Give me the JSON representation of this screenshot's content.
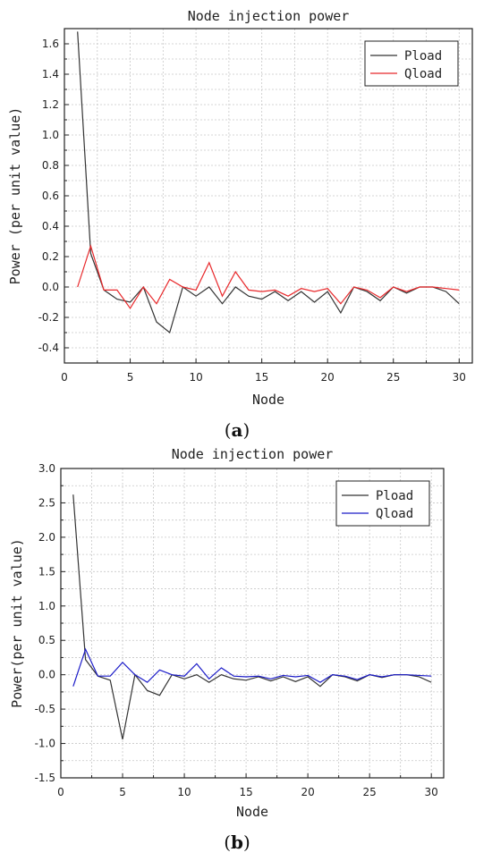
{
  "chart_data": [
    {
      "type": "line",
      "panel": "(a)",
      "title": "Node injection power",
      "xlabel": "Node",
      "ylabel": "Power (per unit value)",
      "xlim": [
        0,
        31
      ],
      "ylim": [
        -0.5,
        1.7
      ],
      "xticks": [
        0,
        5,
        10,
        15,
        20,
        25,
        30
      ],
      "yticks": [
        -0.4,
        -0.2,
        0.0,
        0.2,
        0.4,
        0.6,
        0.8,
        1.0,
        1.2,
        1.4,
        1.6
      ],
      "ytick_decimals": 1,
      "grid": true,
      "legend_position": "top-right",
      "x": [
        1,
        2,
        3,
        4,
        5,
        6,
        7,
        8,
        9,
        10,
        11,
        12,
        13,
        14,
        15,
        16,
        17,
        18,
        19,
        20,
        21,
        22,
        23,
        24,
        25,
        26,
        27,
        28,
        29,
        30
      ],
      "series": [
        {
          "name": "Pload",
          "color": "#333333",
          "values": [
            1.68,
            0.22,
            -0.02,
            -0.08,
            -0.1,
            0.0,
            -0.23,
            -0.3,
            0.0,
            -0.06,
            0.0,
            -0.11,
            0.0,
            -0.06,
            -0.08,
            -0.03,
            -0.09,
            -0.03,
            -0.1,
            -0.03,
            -0.17,
            0.0,
            -0.03,
            -0.09,
            0.0,
            -0.04,
            0.0,
            0.0,
            -0.03,
            -0.11
          ]
        },
        {
          "name": "Qload",
          "color": "#e8282b",
          "values": [
            0.0,
            0.27,
            -0.02,
            -0.02,
            -0.14,
            0.0,
            -0.11,
            0.05,
            0.0,
            -0.02,
            0.16,
            -0.06,
            0.1,
            -0.02,
            -0.03,
            -0.02,
            -0.06,
            -0.01,
            -0.03,
            -0.01,
            -0.11,
            0.0,
            -0.02,
            -0.07,
            0.0,
            -0.03,
            0.0,
            0.0,
            -0.01,
            -0.02
          ]
        }
      ]
    },
    {
      "type": "line",
      "panel": "(b)",
      "title": "Node injection power",
      "xlabel": "Node",
      "ylabel": "Power(per unit value)",
      "xlim": [
        0,
        31
      ],
      "ylim": [
        -1.5,
        3.0
      ],
      "xticks": [
        0,
        5,
        10,
        15,
        20,
        25,
        30
      ],
      "yticks": [
        -1.5,
        -1.0,
        -0.5,
        0.0,
        0.5,
        1.0,
        1.5,
        2.0,
        2.5,
        3.0
      ],
      "ytick_decimals": 1,
      "grid": true,
      "legend_position": "top-right",
      "x": [
        1,
        2,
        3,
        4,
        5,
        6,
        7,
        8,
        9,
        10,
        11,
        12,
        13,
        14,
        15,
        16,
        17,
        18,
        19,
        20,
        21,
        22,
        23,
        24,
        25,
        26,
        27,
        28,
        29,
        30
      ],
      "series": [
        {
          "name": "Pload",
          "color": "#333333",
          "values": [
            2.62,
            0.22,
            -0.02,
            -0.08,
            -0.94,
            0.0,
            -0.23,
            -0.3,
            0.0,
            -0.06,
            0.0,
            -0.11,
            0.0,
            -0.06,
            -0.08,
            -0.03,
            -0.09,
            -0.03,
            -0.1,
            -0.03,
            -0.17,
            0.0,
            -0.03,
            -0.09,
            0.0,
            -0.04,
            0.0,
            0.0,
            -0.03,
            -0.11
          ]
        },
        {
          "name": "Qload",
          "color": "#1a1ac8",
          "values": [
            -0.17,
            0.37,
            -0.02,
            -0.02,
            0.18,
            0.0,
            -0.11,
            0.07,
            0.0,
            -0.02,
            0.16,
            -0.06,
            0.1,
            -0.02,
            -0.03,
            -0.02,
            -0.06,
            -0.01,
            -0.03,
            -0.01,
            -0.11,
            0.0,
            -0.02,
            -0.07,
            0.0,
            -0.03,
            0.0,
            0.0,
            -0.01,
            -0.02
          ]
        }
      ]
    }
  ]
}
